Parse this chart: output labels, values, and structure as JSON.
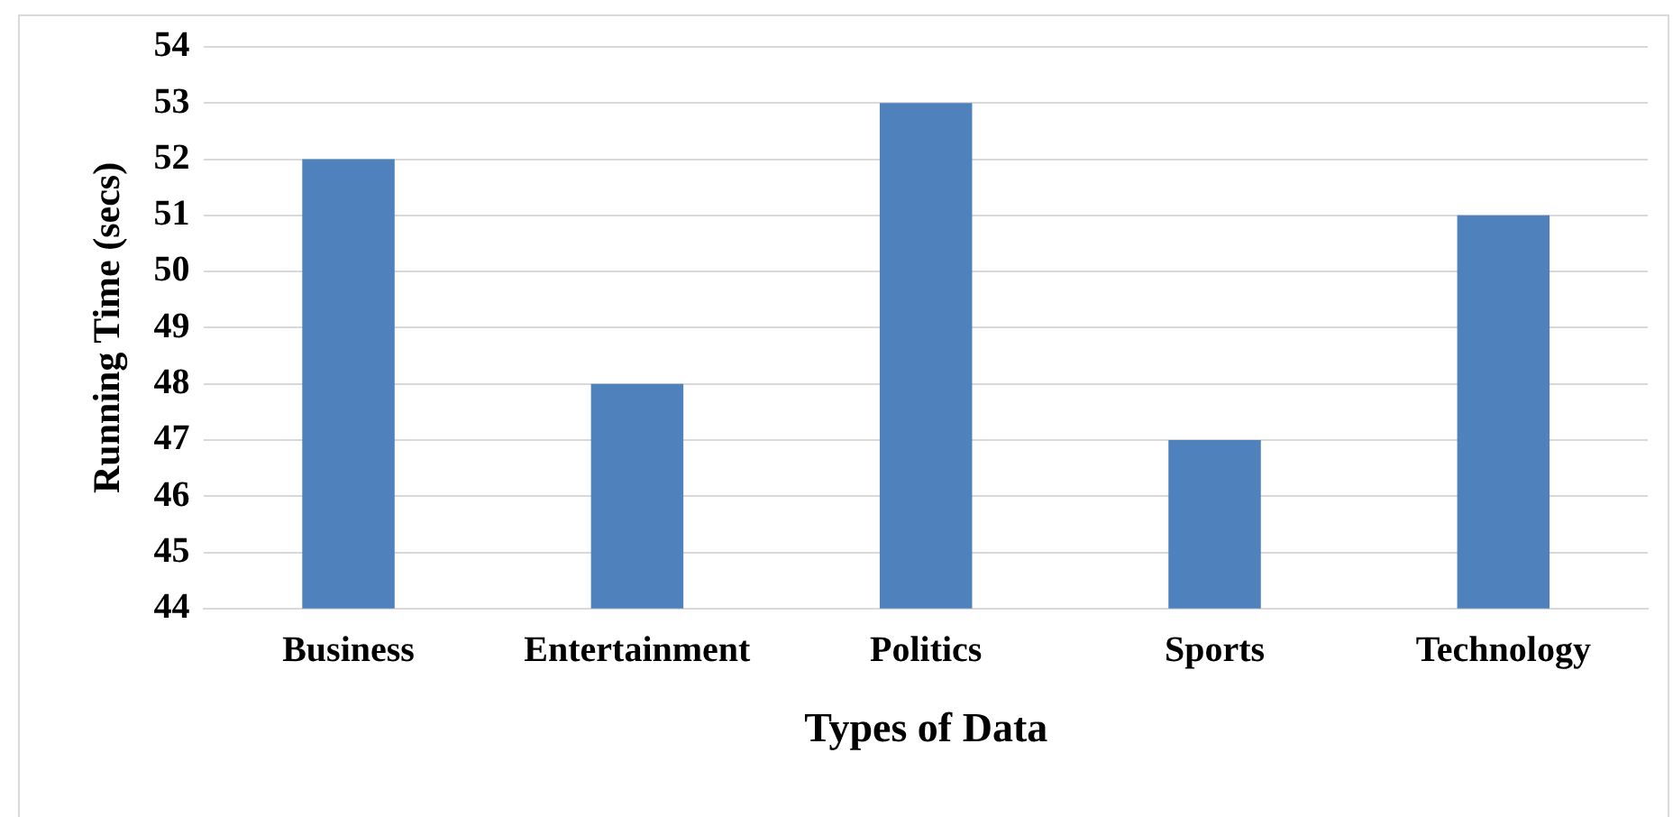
{
  "chart_data": {
    "type": "bar",
    "xlabel": "Types of Data",
    "ylabel": "Running Time (secs)",
    "categories": [
      "Business",
      "Entertainment",
      "Politics",
      "Sports",
      "Technology"
    ],
    "values": [
      52,
      48,
      53,
      47,
      51
    ],
    "color": "#4f81bd",
    "ylim": [
      44,
      54
    ],
    "yticks": [
      44,
      45,
      46,
      47,
      48,
      49,
      50,
      51,
      52,
      53,
      54
    ],
    "grid": "y"
  }
}
